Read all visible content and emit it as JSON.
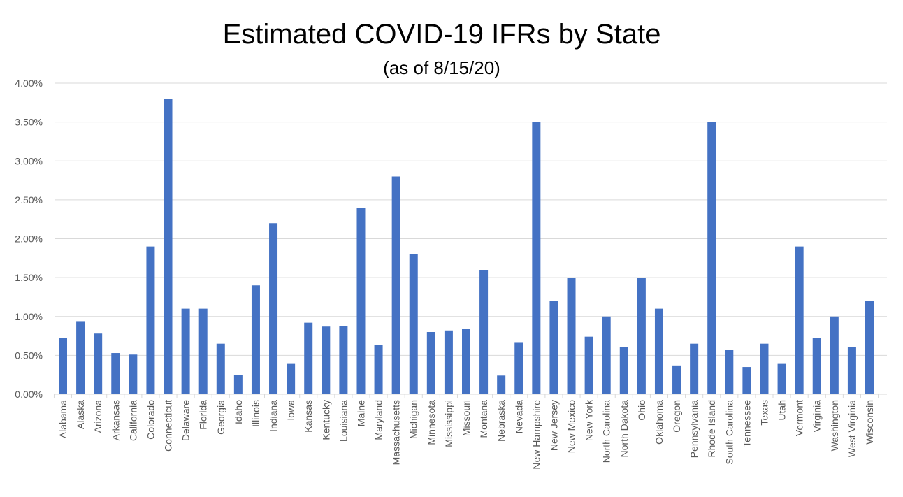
{
  "chart_data": {
    "type": "bar",
    "title": "Estimated COVID-19 IFRs by State",
    "subtitle": "(as of 8/15/20)",
    "xlabel": "",
    "ylabel": "",
    "ylim": [
      0,
      4.0
    ],
    "yticks": [
      0,
      0.5,
      1.0,
      1.5,
      2.0,
      2.5,
      3.0,
      3.5,
      4.0
    ],
    "ytick_labels": [
      "0.00%",
      "0.50%",
      "1.00%",
      "1.50%",
      "2.00%",
      "2.50%",
      "3.00%",
      "3.50%",
      "4.00%"
    ],
    "grid": true,
    "legend": "none",
    "bar_color": "#4472C4",
    "categories": [
      "Alabama",
      "Alaska",
      "Arizona",
      "Arkansas",
      "California",
      "Colorado",
      "Connecticut",
      "Delaware",
      "Florida",
      "Georgia",
      "Idaho",
      "Illinois",
      "Indiana",
      "Iowa",
      "Kansas",
      "Kentucky",
      "Louisiana",
      "Maine",
      "Maryland",
      "Massachusetts",
      "Michigan",
      "Minnesota",
      "Mississippi",
      "Missouri",
      "Montana",
      "Nebraska",
      "Nevada",
      "New Hampshire",
      "New Jersey",
      "New Mexico",
      "New York",
      "North Carolina",
      "North Dakota",
      "Ohio",
      "Oklahoma",
      "Oregon",
      "Pennsylvania",
      "Rhode Island",
      "South Carolina",
      "Tennessee",
      "Texas",
      "Utah",
      "Vermont",
      "Virginia",
      "Washington",
      "West Virginia",
      "Wisconsin"
    ],
    "values": [
      0.72,
      0.94,
      0.78,
      0.53,
      0.51,
      1.9,
      3.8,
      1.1,
      1.1,
      0.65,
      0.25,
      1.4,
      2.2,
      0.39,
      0.92,
      0.87,
      0.88,
      2.4,
      0.63,
      2.8,
      1.8,
      0.8,
      0.82,
      0.84,
      1.6,
      0.24,
      0.67,
      3.5,
      1.2,
      1.5,
      0.74,
      1.0,
      0.61,
      1.5,
      1.1,
      0.37,
      0.65,
      3.5,
      0.57,
      0.35,
      0.65,
      0.39,
      1.9,
      0.72,
      1.0,
      0.61,
      1.2
    ]
  }
}
